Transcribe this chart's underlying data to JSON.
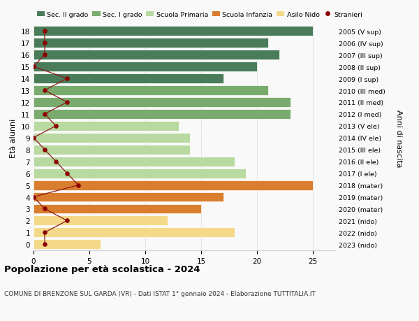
{
  "ages": [
    18,
    17,
    16,
    15,
    14,
    13,
    12,
    11,
    10,
    9,
    8,
    7,
    6,
    5,
    4,
    3,
    2,
    1,
    0
  ],
  "right_labels": [
    "2005 (V sup)",
    "2006 (IV sup)",
    "2007 (III sup)",
    "2008 (II sup)",
    "2009 (I sup)",
    "2010 (III med)",
    "2011 (II med)",
    "2012 (I med)",
    "2013 (V ele)",
    "2014 (IV ele)",
    "2015 (III ele)",
    "2016 (II ele)",
    "2017 (I ele)",
    "2018 (mater)",
    "2019 (mater)",
    "2020 (mater)",
    "2021 (nido)",
    "2022 (nido)",
    "2023 (nido)"
  ],
  "bar_values": [
    25,
    21,
    22,
    20,
    17,
    21,
    23,
    23,
    13,
    14,
    14,
    18,
    19,
    25,
    17,
    15,
    12,
    18,
    6
  ],
  "bar_colors": [
    "#4a7c59",
    "#4a7c59",
    "#4a7c59",
    "#4a7c59",
    "#4a7c59",
    "#7aab6e",
    "#7aab6e",
    "#7aab6e",
    "#b8d9a0",
    "#b8d9a0",
    "#b8d9a0",
    "#b8d9a0",
    "#b8d9a0",
    "#d97e2e",
    "#d97e2e",
    "#d97e2e",
    "#f5d98b",
    "#f5d98b",
    "#f5d98b"
  ],
  "stranieri_values": [
    1,
    1,
    1,
    0,
    3,
    1,
    3,
    1,
    2,
    0,
    1,
    2,
    3,
    4,
    0,
    1,
    3,
    1,
    1
  ],
  "legend_labels": [
    "Sec. II grado",
    "Sec. I grado",
    "Scuola Primaria",
    "Scuola Infanzia",
    "Asilo Nido",
    "Stranieri"
  ],
  "legend_colors": [
    "#4a7c59",
    "#7aab6e",
    "#b8d9a0",
    "#d97e2e",
    "#f5d98b",
    "#8b0000"
  ],
  "ylabel_left": "Età alunni",
  "ylabel_right": "Anni di nascita",
  "title": "Popolazione per età scolastica - 2024",
  "subtitle": "COMUNE DI BRENZONE SUL GARDA (VR) - Dati ISTAT 1° gennaio 2024 - Elaborazione TUTTITALIA.IT",
  "xlim": [
    0,
    27
  ],
  "xticks": [
    0,
    5,
    10,
    15,
    20,
    25
  ],
  "background_color": "#f9f9f9",
  "stranieri_color": "#8b0000",
  "stranieri_line_color": "#8b1a1a",
  "bar_height": 0.82
}
